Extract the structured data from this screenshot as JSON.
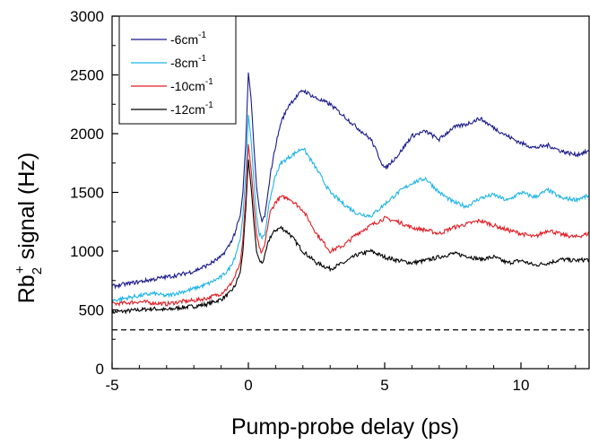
{
  "chart_data": {
    "type": "line",
    "xlabel": "Pump-probe delay (ps)",
    "ylabel_main": "Rb",
    "ylabel_sub": "2",
    "ylabel_sup": "+",
    "ylabel_rest": " signal (Hz)",
    "xlim": [
      -5,
      12.5
    ],
    "ylim": [
      0,
      3000
    ],
    "x_ticks": [
      -5,
      0,
      5,
      10
    ],
    "y_ticks": [
      0,
      500,
      1000,
      1500,
      2000,
      2500,
      3000
    ],
    "grid": false,
    "legend_position": "top-left",
    "baseline": {
      "y": 330,
      "style": "dashed",
      "color": "#000000"
    },
    "series": [
      {
        "name": "-6cm",
        "sup": "-1",
        "color": "#1a1a8c",
        "x": [
          -5,
          -4.5,
          -4,
          -3.5,
          -3,
          -2.5,
          -2,
          -1.5,
          -1,
          -0.7,
          -0.5,
          -0.3,
          -0.2,
          -0.1,
          0,
          0.1,
          0.2,
          0.3,
          0.4,
          0.5,
          0.6,
          0.7,
          0.8,
          1,
          1.2,
          1.5,
          2,
          2.5,
          3,
          3.5,
          4,
          4.5,
          5,
          5.5,
          6,
          6.5,
          7,
          7.5,
          8,
          8.5,
          9,
          9.5,
          10,
          10.5,
          11,
          11.5,
          12,
          12.5
        ],
        "y": [
          700,
          720,
          740,
          760,
          780,
          800,
          830,
          880,
          950,
          1050,
          1150,
          1300,
          1500,
          1900,
          2520,
          2300,
          1900,
          1550,
          1350,
          1250,
          1300,
          1450,
          1650,
          1900,
          2100,
          2250,
          2370,
          2300,
          2250,
          2150,
          2050,
          1950,
          1700,
          1820,
          1980,
          2020,
          1950,
          2050,
          2080,
          2130,
          2050,
          1980,
          1920,
          1880,
          1900,
          1850,
          1820,
          1850
        ]
      },
      {
        "name": "-8cm",
        "sup": "-1",
        "color": "#1fb4e6",
        "x": [
          -5,
          -4.5,
          -4,
          -3.5,
          -3,
          -2.5,
          -2,
          -1.5,
          -1,
          -0.7,
          -0.5,
          -0.3,
          -0.2,
          -0.1,
          0,
          0.1,
          0.2,
          0.3,
          0.4,
          0.5,
          0.6,
          0.7,
          0.8,
          1,
          1.2,
          1.5,
          2,
          2.5,
          3,
          3.5,
          4,
          4.5,
          5,
          5.5,
          6,
          6.5,
          7,
          7.5,
          8,
          8.5,
          9,
          9.5,
          10,
          10.5,
          11,
          11.5,
          12,
          12.5
        ],
        "y": [
          580,
          600,
          620,
          640,
          620,
          650,
          680,
          720,
          780,
          850,
          950,
          1100,
          1300,
          1650,
          2160,
          1950,
          1600,
          1300,
          1150,
          1100,
          1150,
          1300,
          1450,
          1650,
          1750,
          1800,
          1880,
          1700,
          1500,
          1400,
          1320,
          1300,
          1400,
          1500,
          1580,
          1620,
          1500,
          1420,
          1380,
          1450,
          1480,
          1430,
          1500,
          1460,
          1520,
          1450,
          1440,
          1470
        ]
      },
      {
        "name": "-10cm",
        "sup": "-1",
        "color": "#e01d24",
        "x": [
          -5,
          -4.5,
          -4,
          -3.5,
          -3,
          -2.5,
          -2,
          -1.5,
          -1,
          -0.7,
          -0.5,
          -0.3,
          -0.2,
          -0.1,
          0,
          0.1,
          0.2,
          0.3,
          0.4,
          0.5,
          0.6,
          0.7,
          0.8,
          1,
          1.2,
          1.5,
          2,
          2.5,
          3,
          3.5,
          4,
          4.5,
          5,
          5.5,
          6,
          6.5,
          7,
          7.5,
          8,
          8.5,
          9,
          9.5,
          10,
          10.5,
          11,
          11.5,
          12,
          12.5
        ],
        "y": [
          550,
          560,
          570,
          560,
          550,
          570,
          580,
          600,
          640,
          700,
          780,
          900,
          1100,
          1450,
          1910,
          1700,
          1400,
          1150,
          1020,
          980,
          1050,
          1200,
          1330,
          1420,
          1460,
          1450,
          1350,
          1150,
          1000,
          1050,
          1150,
          1220,
          1280,
          1250,
          1200,
          1180,
          1150,
          1200,
          1230,
          1260,
          1220,
          1180,
          1150,
          1120,
          1180,
          1140,
          1120,
          1150
        ]
      },
      {
        "name": "-12cm",
        "sup": "-1",
        "color": "#000000",
        "x": [
          -5,
          -4.5,
          -4,
          -3.5,
          -3,
          -2.5,
          -2,
          -1.5,
          -1,
          -0.7,
          -0.5,
          -0.3,
          -0.2,
          -0.1,
          0,
          0.1,
          0.2,
          0.3,
          0.4,
          0.5,
          0.6,
          0.7,
          0.8,
          1,
          1.2,
          1.5,
          2,
          2.5,
          3,
          3.5,
          4,
          4.5,
          5,
          5.5,
          6,
          6.5,
          7,
          7.5,
          8,
          8.5,
          9,
          9.5,
          10,
          10.5,
          11,
          11.5,
          12,
          12.5
        ],
        "y": [
          480,
          490,
          500,
          510,
          500,
          520,
          530,
          550,
          590,
          640,
          700,
          820,
          1000,
          1350,
          1780,
          1550,
          1250,
          1000,
          920,
          900,
          950,
          1050,
          1120,
          1180,
          1200,
          1150,
          1000,
          900,
          850,
          900,
          970,
          1000,
          950,
          920,
          900,
          920,
          950,
          980,
          960,
          930,
          950,
          900,
          920,
          880,
          900,
          930,
          920,
          930
        ]
      }
    ]
  }
}
